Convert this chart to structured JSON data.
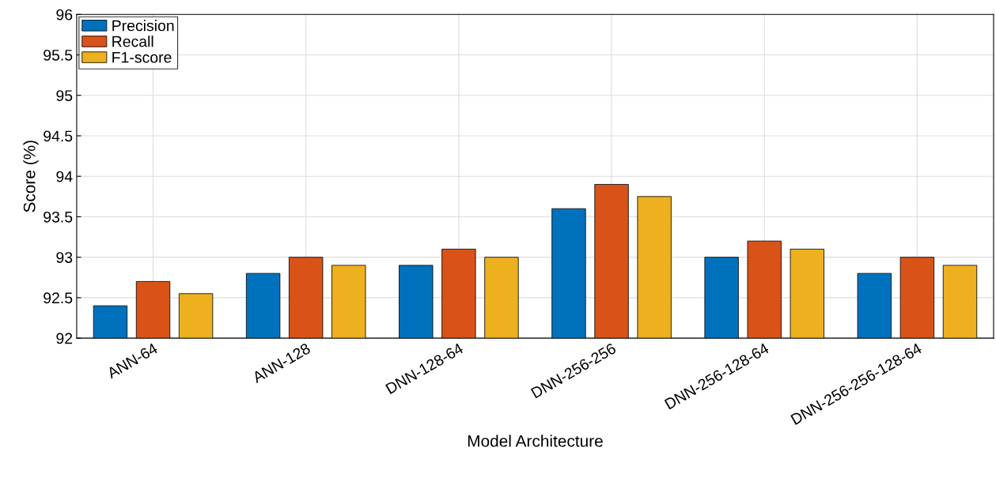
{
  "chart_data": {
    "type": "bar",
    "xlabel": "Model Architecture",
    "ylabel": "Score (%)",
    "categories": [
      "ANN-64",
      "ANN-128",
      "DNN-128-64",
      "DNN-256-256",
      "DNN-256-128-64",
      "DNN-256-256-128-64"
    ],
    "series": [
      {
        "name": "Precision",
        "color": "#0072bd",
        "values": [
          92.4,
          92.8,
          92.9,
          93.6,
          93.0,
          92.8
        ]
      },
      {
        "name": "Recall",
        "color": "#d95319",
        "values": [
          92.7,
          93.0,
          93.1,
          93.9,
          93.2,
          93.0
        ]
      },
      {
        "name": "F1-score",
        "color": "#edb120",
        "values": [
          92.55,
          92.9,
          93.0,
          93.75,
          93.1,
          92.9
        ]
      }
    ],
    "ylim": [
      92,
      96
    ],
    "yticks": [
      92,
      92.5,
      93,
      93.5,
      94,
      94.5,
      95,
      95.5,
      96
    ],
    "grid": true,
    "legend": "top left"
  }
}
